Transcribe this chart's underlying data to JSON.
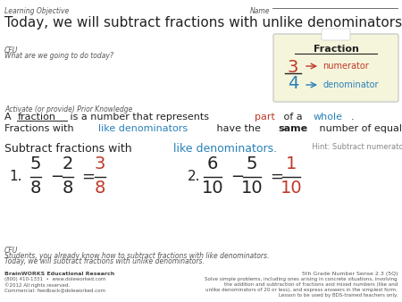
{
  "bg_color": "#ffffff",
  "title": "Today, we will subtract fractions with unlike denominators.",
  "learning_objective_label": "Learning Objective",
  "name_label": "Name",
  "cfu_label1": "CFU",
  "cfu_question": "What are we going to do today?",
  "apk_label": "Activate (or provide) Prior Knowledge",
  "apk_line1": [
    {
      "text": "A ",
      "color": "#222222",
      "bold": false,
      "underline": false
    },
    {
      "text": "fraction",
      "color": "#222222",
      "bold": false,
      "underline": true
    },
    {
      "text": " is a number that represents ",
      "color": "#222222",
      "bold": false,
      "underline": false
    },
    {
      "text": "part",
      "color": "#c0392b",
      "bold": false,
      "underline": false
    },
    {
      "text": " of a ",
      "color": "#222222",
      "bold": false,
      "underline": false
    },
    {
      "text": "whole",
      "color": "#2980b9",
      "bold": false,
      "underline": false
    },
    {
      "text": ".",
      "color": "#222222",
      "bold": false,
      "underline": false
    }
  ],
  "apk_line2": [
    {
      "text": "Fractions with ",
      "color": "#222222",
      "bold": false
    },
    {
      "text": "like denominators",
      "color": "#2980b9",
      "bold": false
    },
    {
      "text": " have the ",
      "color": "#222222",
      "bold": false
    },
    {
      "text": "same",
      "color": "#222222",
      "bold": true
    },
    {
      "text": " number of equal parts.",
      "color": "#222222",
      "bold": false
    }
  ],
  "subtract_parts": [
    {
      "text": "Subtract fractions with ",
      "color": "#222222",
      "bold": false,
      "fs": 9
    },
    {
      "text": "like denominators.",
      "color": "#2980b9",
      "bold": false,
      "fs": 9
    },
    {
      "text": "  Hint: Subtract numerators and keep the denominators the same",
      "color": "#888888",
      "bold": false,
      "fs": 6
    }
  ],
  "fraction_box_color": "#f5f5dc",
  "fraction_box_title": "Fraction",
  "fraction_numerator_label": "numerator",
  "fraction_denominator_label": "denominator",
  "fraction_num_color": "#c0392b",
  "fraction_denom_color": "#2980b9",
  "cfu_label2": "CFU",
  "cfu_bottom1": "Students, you already know how to subtract fractions with like denominators.",
  "cfu_bottom2": "Today, we will subtract fractions with unlike denominators.",
  "company_line1": "BrainWORKS Educational Research",
  "company_line2": "(800) 410-1331  •  www.doleworked.com",
  "company_line3": "©2012 All rights reserved.",
  "company_line4": "Commercial: feedback@doleworked.com",
  "standard_line1": "5th Grade Number Sense 2.3 (5Q)",
  "standard_line2": "Solve simple problems, including ones arising in concrete situations, involving",
  "standard_line3": "the addition and subtraction of fractions and mixed numbers (like and",
  "standard_line4": "unlike denominators of 20 or less), and express answers in the simplest form.",
  "standard_line5": "Lesson to be used by BDS-trained teachers only."
}
